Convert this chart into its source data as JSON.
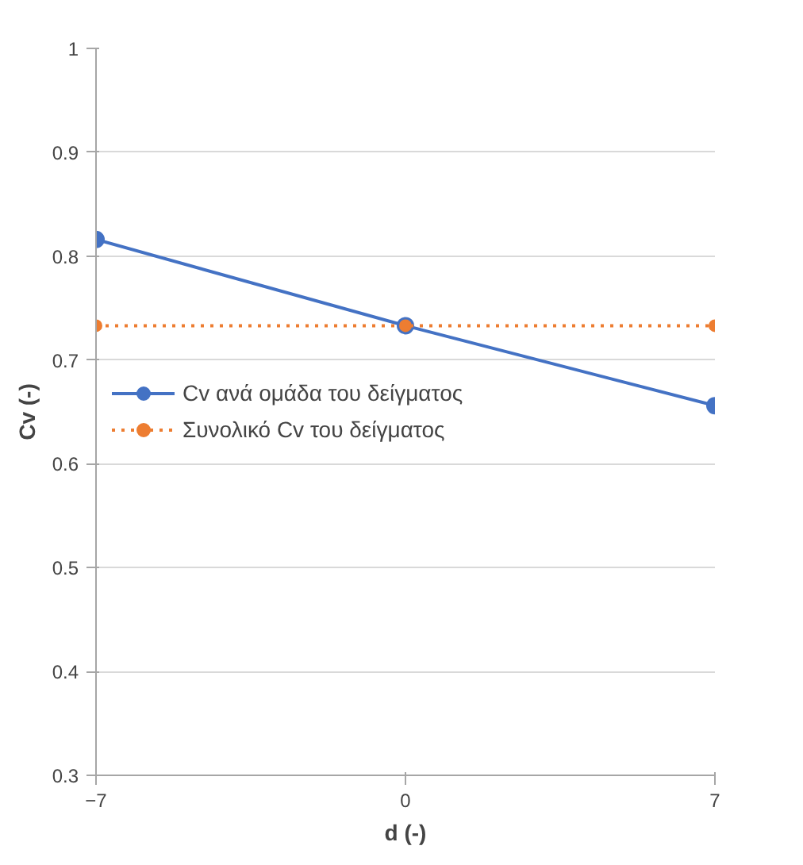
{
  "chart_data": {
    "type": "line",
    "xlabel": "d (-)",
    "ylabel": "Cv (-)",
    "x": [
      -7,
      0,
      7
    ],
    "xlim": [
      -7,
      7
    ],
    "xticks": [
      -7,
      0,
      7
    ],
    "ylim": [
      0.3,
      1
    ],
    "yticks": [
      0.3,
      0.4,
      0.5,
      0.6,
      0.7,
      0.8,
      0.9,
      1
    ],
    "grid": "y",
    "legend": "left",
    "marker": "circle",
    "series": [
      {
        "name": "Cv ανά ομάδα του δείγματος",
        "color": "#4472c4",
        "values": [
          0.816,
          0.733,
          0.656
        ],
        "line_style": "solid"
      },
      {
        "name": "Συνολικό Cv του δείγματος",
        "color": "#ed7d31",
        "values": [
          0.733,
          0.733,
          0.733
        ],
        "line_style": "dotted"
      }
    ]
  }
}
